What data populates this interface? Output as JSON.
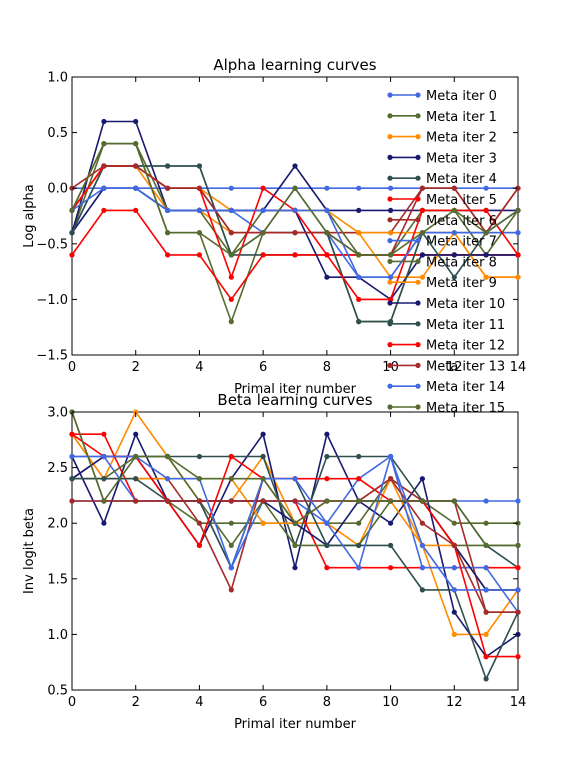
{
  "chart_data": [
    {
      "type": "line",
      "title": "Alpha learning curves",
      "xlabel": "Primal iter number",
      "ylabel": "Log alpha",
      "xlim": [
        0,
        14
      ],
      "ylim": [
        -1.5,
        1.0
      ],
      "xticks": [
        0,
        2,
        4,
        6,
        8,
        10,
        12,
        14
      ],
      "xtick_labels": [
        "0",
        "2",
        "4",
        "6",
        "8",
        "10",
        "12",
        "14"
      ],
      "yticks": [
        -1.5,
        -1.0,
        -0.5,
        0.0,
        0.5,
        1.0
      ],
      "ytick_labels": [
        "−1.5",
        "−1.0",
        "−0.5",
        "0.0",
        "0.5",
        "1.0"
      ],
      "legend_position": "top-right",
      "grid": false,
      "x": [
        0,
        1,
        2,
        3,
        4,
        5,
        6,
        7,
        8,
        9,
        10,
        11,
        12,
        13,
        14
      ],
      "series": [
        {
          "name": "Meta iter 0",
          "color": "#4169e1",
          "values": [
            0,
            0,
            0,
            0,
            0,
            0,
            0,
            0,
            0,
            0,
            0,
            0,
            0,
            0,
            0
          ]
        },
        {
          "name": "Meta iter 1",
          "color": "#556b2f",
          "values": [
            -0.4,
            0.4,
            0.4,
            -0.4,
            -0.4,
            -1.2,
            -0.4,
            -0.4,
            -0.4,
            -1.2,
            -1.2,
            -0.4,
            -0.4,
            -0.4,
            -0.4
          ]
        },
        {
          "name": "Meta iter 2",
          "color": "#ff8c00",
          "values": [
            -0.2,
            0.2,
            0.2,
            -0.2,
            -0.2,
            -0.4,
            -0.4,
            -0.4,
            -0.4,
            -0.4,
            -0.8,
            -0.8,
            -0.4,
            -0.8,
            -0.8
          ]
        },
        {
          "name": "Meta iter 3",
          "color": "#191970",
          "values": [
            -0.4,
            0.6,
            0.6,
            -0.2,
            -0.2,
            -0.2,
            -0.2,
            0.2,
            -0.2,
            -0.2,
            -0.2,
            -0.2,
            -0.2,
            -0.2,
            -0.2
          ]
        },
        {
          "name": "Meta iter 4",
          "color": "#2f4f4f",
          "values": [
            -0.4,
            0.2,
            0.2,
            0.2,
            0.2,
            -0.6,
            -0.6,
            -0.6,
            -0.6,
            -0.6,
            -0.6,
            -0.6,
            -0.6,
            -0.6,
            -0.6
          ]
        },
        {
          "name": "Meta iter 5",
          "color": "#ff0000",
          "values": [
            -0.6,
            -0.2,
            -0.2,
            -0.6,
            -0.6,
            -1.0,
            -0.6,
            -0.6,
            -0.6,
            -0.6,
            -0.6,
            -0.6,
            -0.6,
            -0.6,
            -0.6
          ]
        },
        {
          "name": "Meta iter 6",
          "color": "#a52a2a",
          "values": [
            -0.2,
            0.2,
            0.2,
            0,
            0,
            -0.4,
            -0.4,
            -0.4,
            -0.4,
            -0.4,
            -0.4,
            0,
            0,
            -0.4,
            0
          ]
        },
        {
          "name": "Meta iter 7",
          "color": "#4169e1",
          "values": [
            -0.4,
            0,
            0,
            -0.2,
            -0.2,
            -0.2,
            -0.4,
            -0.4,
            -0.4,
            -0.8,
            -0.8,
            -0.4,
            -0.4,
            -0.4,
            -0.4
          ]
        },
        {
          "name": "Meta iter 8",
          "color": "#556b2f",
          "values": [
            -0.2,
            0.4,
            0.4,
            -0.2,
            -0.2,
            -0.6,
            -0.2,
            -0.2,
            -0.2,
            -0.6,
            -0.6,
            -0.2,
            -0.2,
            -0.6,
            -0.2
          ]
        },
        {
          "name": "Meta iter 9",
          "color": "#ff8c00",
          "values": [
            -0.2,
            0.2,
            0.2,
            0,
            0,
            -0.2,
            -0.2,
            -0.2,
            -0.2,
            -0.4,
            -0.4,
            -0.4,
            -0.4,
            -0.8,
            -0.8
          ]
        },
        {
          "name": "Meta iter 10",
          "color": "#191970",
          "values": [
            -0.4,
            0,
            0,
            -0.2,
            -0.2,
            -0.2,
            -0.2,
            -0.2,
            -0.8,
            -0.8,
            -1.0,
            -0.6,
            -0.6,
            -0.6,
            -0.6
          ]
        },
        {
          "name": "Meta iter 11",
          "color": "#2f4f4f",
          "values": [
            -0.4,
            0.2,
            0.2,
            0.2,
            0.2,
            -0.6,
            -0.4,
            0,
            -0.4,
            -1.2,
            -1.2,
            -0.4,
            -0.8,
            -0.4,
            -0.2
          ]
        },
        {
          "name": "Meta iter 12",
          "color": "#ff0000",
          "values": [
            -0.2,
            0.2,
            0.2,
            0,
            0,
            -0.8,
            0,
            -0.2,
            -0.6,
            -1.0,
            -1.0,
            -0.2,
            -0.2,
            -0.2,
            -0.6
          ]
        },
        {
          "name": "Meta iter 13",
          "color": "#a52a2a",
          "values": [
            0,
            0.2,
            0.2,
            0,
            0,
            -0.4,
            -0.4,
            -0.4,
            -0.4,
            -0.6,
            -0.6,
            0,
            0,
            -0.4,
            0
          ]
        },
        {
          "name": "Meta iter 14",
          "color": "#4169e1",
          "values": [
            -0.2,
            0,
            0,
            -0.2,
            -0.2,
            -0.2,
            -0.2,
            -0.2,
            -0.2,
            -0.8,
            -0.8,
            -0.4,
            -0.4,
            -0.4,
            -0.2
          ]
        },
        {
          "name": "Meta iter 15",
          "color": "#556b2f",
          "values": [
            -0.2,
            0.4,
            0.4,
            -0.4,
            -0.4,
            -0.6,
            -0.4,
            0,
            -0.4,
            -0.6,
            -0.6,
            -0.4,
            -0.2,
            -0.4,
            -0.2
          ]
        }
      ],
      "legend_entries": [
        "Meta iter 0",
        "Meta iter 1",
        "Meta iter 2",
        "Meta iter 3",
        "Meta iter 4",
        "Meta iter 5",
        "Meta iter 6",
        "Meta iter 7",
        "Meta iter 8",
        "Meta iter 9",
        "Meta iter 10",
        "Meta iter 11",
        "Meta iter 12",
        "Meta iter 13",
        "Meta iter 14",
        "Meta iter 15"
      ]
    },
    {
      "type": "line",
      "title": "Beta learning curves",
      "xlabel": "Primal iter number",
      "ylabel": "Inv logit beta",
      "xlim": [
        0,
        14
      ],
      "ylim": [
        0.5,
        3.0
      ],
      "xticks": [
        0,
        2,
        4,
        6,
        8,
        10,
        12,
        14
      ],
      "xtick_labels": [
        "0",
        "2",
        "4",
        "6",
        "8",
        "10",
        "12",
        "14"
      ],
      "yticks": [
        0.5,
        1.0,
        1.5,
        2.0,
        2.5,
        3.0
      ],
      "ytick_labels": [
        "0.5",
        "1.0",
        "1.5",
        "2.0",
        "2.5",
        "3.0"
      ],
      "grid": false,
      "x": [
        0,
        1,
        2,
        3,
        4,
        5,
        6,
        7,
        8,
        9,
        10,
        11,
        12,
        13,
        14
      ],
      "series": [
        {
          "color": "#4169e1",
          "values": [
            2.2,
            2.2,
            2.2,
            2.2,
            2.2,
            2.2,
            2.2,
            2.2,
            2.2,
            2.2,
            2.2,
            2.2,
            2.2,
            2.2,
            2.2
          ]
        },
        {
          "color": "#556b2f",
          "values": [
            3.0,
            2.2,
            2.2,
            2.2,
            2.0,
            2.0,
            2.0,
            2.0,
            2.0,
            2.0,
            2.4,
            2.2,
            2.0,
            2.0,
            2.0
          ]
        },
        {
          "color": "#ff8c00",
          "values": [
            2.8,
            2.4,
            3.0,
            2.6,
            2.2,
            2.2,
            2.6,
            2.0,
            2.0,
            1.8,
            2.4,
            1.8,
            1.0,
            1.0,
            1.4
          ]
        },
        {
          "color": "#191970",
          "values": [
            2.6,
            2.0,
            2.8,
            2.2,
            1.8,
            2.4,
            2.8,
            1.6,
            2.8,
            2.2,
            2.0,
            2.4,
            1.2,
            0.8,
            1.0
          ]
        },
        {
          "color": "#2f4f4f",
          "values": [
            2.4,
            2.6,
            2.6,
            2.6,
            2.6,
            2.6,
            2.6,
            1.8,
            2.6,
            2.6,
            2.6,
            2.2,
            2.2,
            1.8,
            1.6
          ]
        },
        {
          "color": "#ff0000",
          "values": [
            2.8,
            2.8,
            2.2,
            2.2,
            2.2,
            2.2,
            2.2,
            2.2,
            1.6,
            1.6,
            1.6,
            1.6,
            1.6,
            1.6,
            1.6
          ]
        },
        {
          "color": "#a52a2a",
          "values": [
            2.4,
            2.4,
            2.4,
            2.4,
            2.0,
            1.4,
            2.4,
            2.0,
            2.2,
            2.2,
            2.4,
            2.2,
            2.2,
            1.2,
            1.2
          ]
        },
        {
          "color": "#4169e1",
          "values": [
            2.6,
            2.6,
            2.2,
            2.2,
            2.2,
            1.6,
            2.2,
            2.2,
            2.0,
            2.4,
            2.6,
            1.6,
            1.6,
            1.6,
            1.2
          ]
        },
        {
          "color": "#556b2f",
          "values": [
            2.4,
            2.4,
            2.6,
            2.6,
            2.2,
            1.8,
            2.2,
            1.8,
            1.8,
            1.8,
            2.2,
            2.2,
            1.8,
            1.8,
            1.8
          ]
        },
        {
          "color": "#ff8c00",
          "values": [
            2.8,
            2.4,
            2.4,
            2.4,
            2.4,
            2.4,
            2.0,
            2.0,
            2.2,
            2.2,
            2.2,
            1.8,
            1.8,
            1.4,
            1.4
          ]
        },
        {
          "color": "#191970",
          "values": [
            2.4,
            2.6,
            2.6,
            2.2,
            2.2,
            2.2,
            2.2,
            2.0,
            1.8,
            2.2,
            2.2,
            2.2,
            1.8,
            1.4,
            1.4
          ]
        },
        {
          "color": "#2f4f4f",
          "values": [
            2.4,
            2.4,
            2.4,
            2.2,
            2.2,
            1.6,
            2.4,
            2.4,
            1.8,
            1.8,
            1.8,
            1.4,
            1.4,
            0.6,
            1.2
          ]
        },
        {
          "color": "#ff0000",
          "values": [
            2.8,
            2.6,
            2.6,
            2.2,
            1.8,
            2.6,
            2.4,
            2.4,
            2.4,
            2.4,
            2.2,
            2.2,
            1.8,
            0.8,
            0.8
          ]
        },
        {
          "color": "#a52a2a",
          "values": [
            2.2,
            2.2,
            2.2,
            2.2,
            2.2,
            2.2,
            2.2,
            2.2,
            2.2,
            2.2,
            2.4,
            2.0,
            1.8,
            1.2,
            1.2
          ]
        },
        {
          "color": "#4169e1",
          "values": [
            2.6,
            2.6,
            2.6,
            2.4,
            2.4,
            1.6,
            2.4,
            2.4,
            2.0,
            1.6,
            2.6,
            1.8,
            1.4,
            1.4,
            1.4
          ]
        },
        {
          "color": "#556b2f",
          "values": [
            3.0,
            2.2,
            2.6,
            2.6,
            2.4,
            2.4,
            2.4,
            2.0,
            2.2,
            2.2,
            2.2,
            2.2,
            2.2,
            1.8,
            1.8
          ]
        }
      ]
    }
  ]
}
